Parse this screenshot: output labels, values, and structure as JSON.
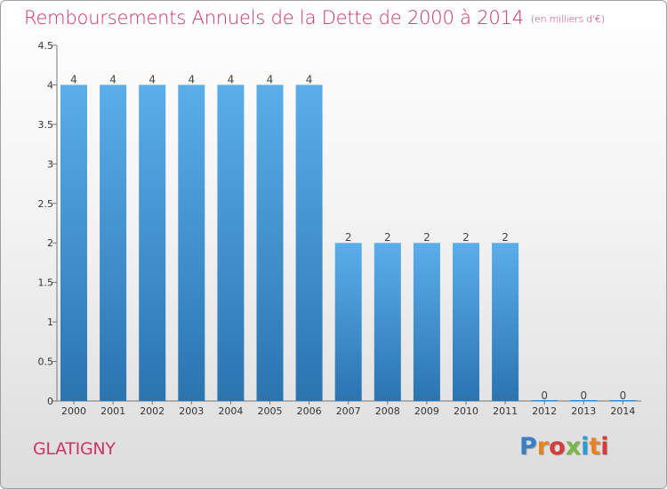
{
  "chart_data": {
    "type": "bar",
    "title": "Remboursements Annuels de la Dette de 2000 à 2014",
    "subtitle": "(en milliers d'€)",
    "categories": [
      "2000",
      "2001",
      "2002",
      "2003",
      "2004",
      "2005",
      "2006",
      "2007",
      "2008",
      "2009",
      "2010",
      "2011",
      "2012",
      "2013",
      "2014"
    ],
    "values": [
      4,
      4,
      4,
      4,
      4,
      4,
      4,
      2,
      2,
      2,
      2,
      2,
      0,
      0,
      0
    ],
    "ylim": [
      0,
      4.5
    ],
    "yticks": [
      "0",
      "0.5",
      "1",
      "1.5",
      "2",
      "2.5",
      "3",
      "3.5",
      "4",
      "4.5"
    ],
    "grid": false,
    "legend": "none",
    "colors": {
      "bar_top": "#5aaeea",
      "bar_bottom": "#2a74b0",
      "title": "#cc3366"
    }
  },
  "footer": {
    "town": "GLATIGNY",
    "logo_letters": [
      "P",
      "r",
      "o",
      "x",
      "i",
      "t",
      "i"
    ],
    "logo_colors": [
      "#3a7fc4",
      "#e8831f",
      "#d63a3a",
      "#7ab648",
      "#2f9bd6",
      "#e8831f",
      "#d63a3a"
    ]
  }
}
